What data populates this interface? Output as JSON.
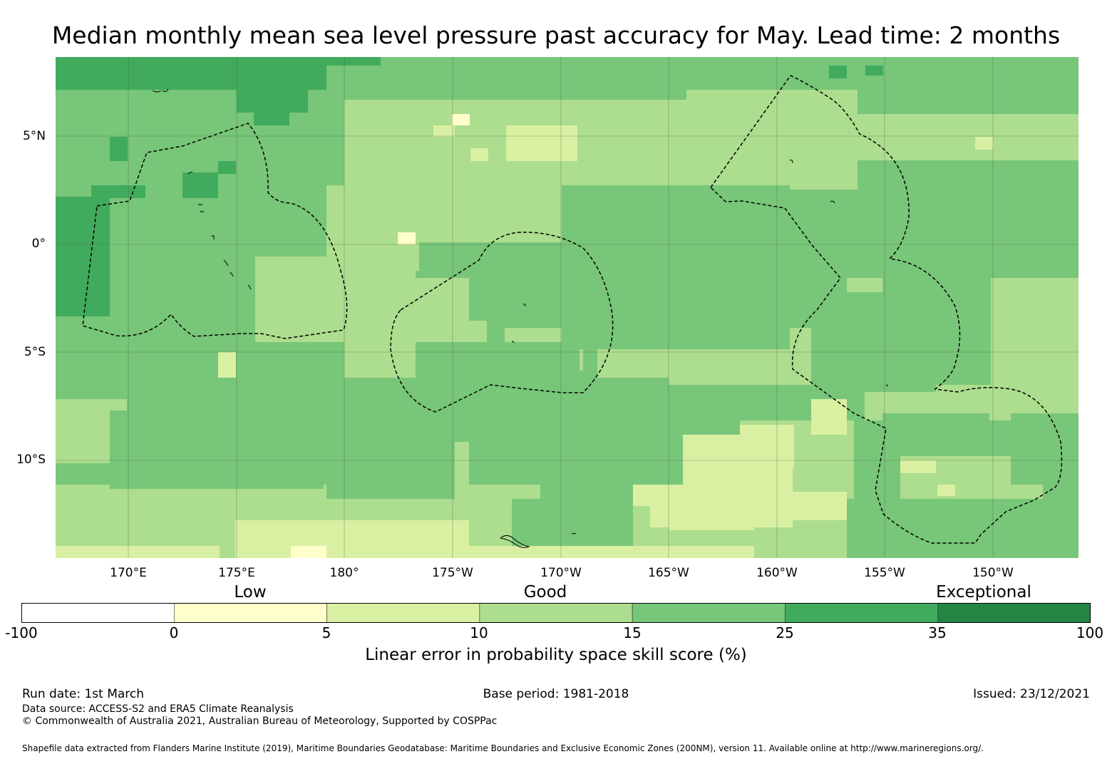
{
  "title": "Median monthly mean sea level pressure past accuracy for May. Lead time: 2 months",
  "map": {
    "lat_labels": [
      "5°N",
      "0°",
      "5°S",
      "10°S"
    ],
    "lon_labels": [
      "170°E",
      "175°E",
      "180°",
      "175°W",
      "170°W",
      "165°W",
      "160°W",
      "155°W",
      "150°W"
    ],
    "colors": {
      "c0": "#ffffcc",
      "c1": "#d9f0a3",
      "c2": "#addd8e",
      "c3": "#78c679",
      "c4": "#41ab5d",
      "c5": "#238443"
    }
  },
  "legend": {
    "category_labels": [
      "Low",
      "Good",
      "Exceptional"
    ],
    "ticks": [
      "-100",
      "0",
      "5",
      "10",
      "15",
      "25",
      "35",
      "100"
    ],
    "colors": [
      "#ffffff",
      "#ffffcc",
      "#d9f0a3",
      "#addd8e",
      "#78c679",
      "#41ab5d",
      "#238443"
    ],
    "label": "Linear error in probability space skill score (%)"
  },
  "footer": {
    "run_date": "Run date: 1st March",
    "base_period": "Base period: 1981-2018",
    "issued": "Issued: 23/12/2021",
    "data_source": "Data source: ACCESS-S2 and ERA5 Climate Reanalysis",
    "copyright": "© Commonwealth of Australia 2021, Australian Bureau of Meteorology, Supported by COSPPac",
    "shapefile": "Shapefile data extracted from Flanders Marine Institute (2019), Maritime Boundaries Geodatabase: Maritime Boundaries and Exclusive Economic Zones (200NM), version 11. Available online at http://www.marineregions.org/."
  }
}
